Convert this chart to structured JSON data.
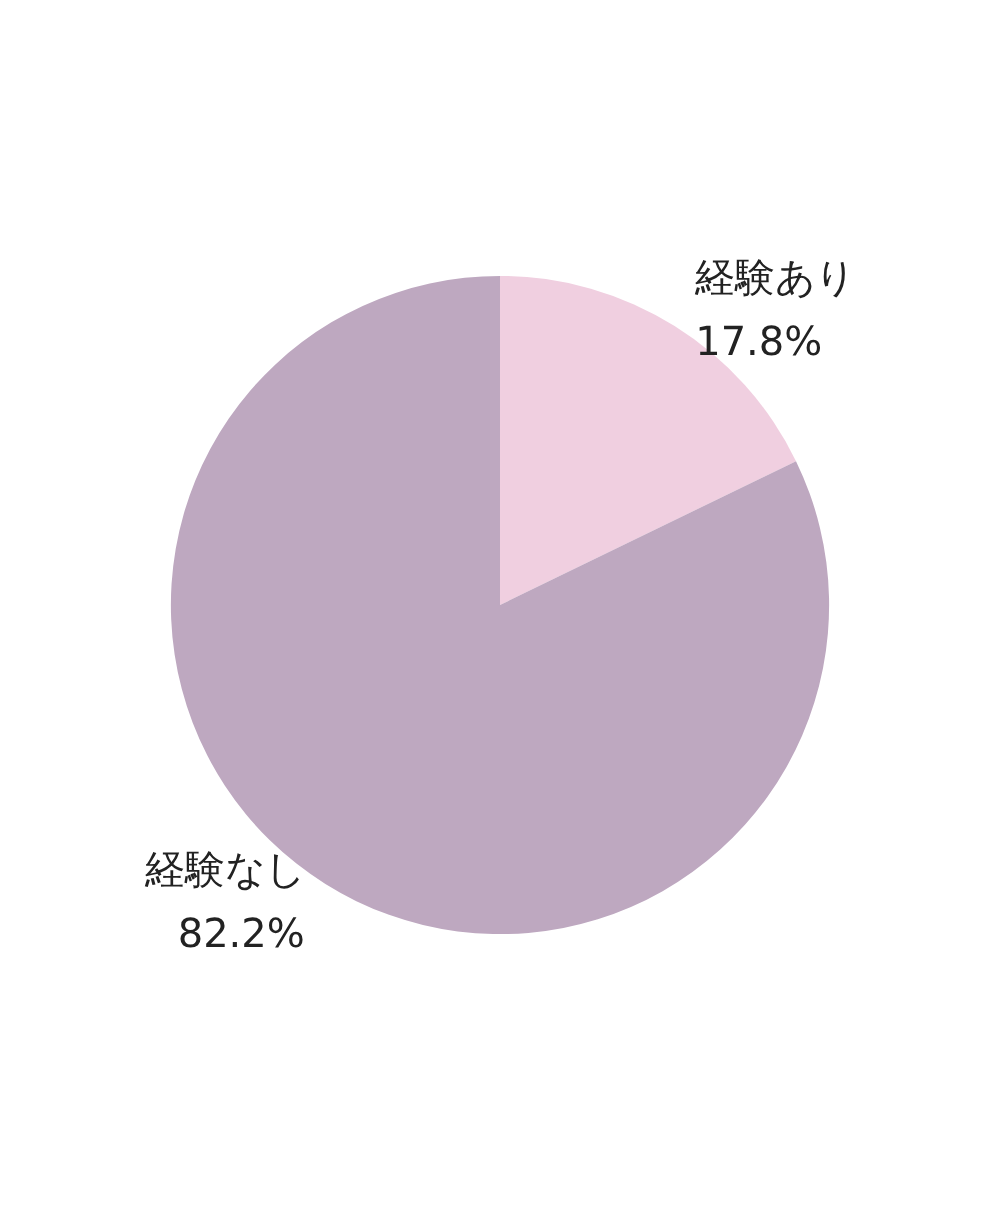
{
  "chart_data": {
    "type": "pie",
    "categories": [
      "経験あり",
      "経験なし"
    ],
    "values": [
      17.8,
      82.2
    ],
    "colors": [
      "#f0cfe0",
      "#bea8c0"
    ],
    "value_labels": [
      "17.8%",
      "82.2%"
    ],
    "legend": false
  }
}
